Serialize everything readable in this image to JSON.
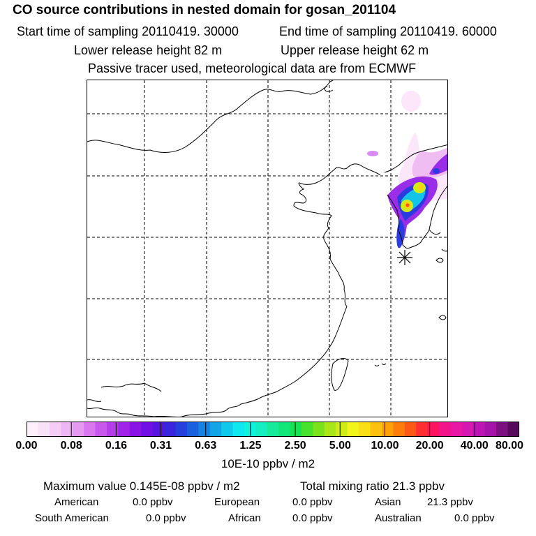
{
  "header": {
    "title": "CO  source contributions in nested domain for gosan_201104",
    "start_label": "Start time of sampling 20110419. 30000",
    "end_label": "End time of sampling 20110419. 60000",
    "lower_label": "Lower release height   82 m",
    "upper_label": "Upper release height   62 m",
    "tracer_note": "Passive tracer used, meteorological data are from ECMWF"
  },
  "colors": {
    "scale": [
      "#fdf0fb",
      "#f9e1f8",
      "#f5ccf5",
      "#eeb6f3",
      "#e59af1",
      "#d877ee",
      "#c857ec",
      "#b63cea",
      "#a024e8",
      "#8a14e6",
      "#7010e4",
      "#5516e0",
      "#3a26dd",
      "#2540dc",
      "#1a60de",
      "#1582e2",
      "#12a4e6",
      "#10c8ea",
      "#0ee8ee",
      "#10f2dc",
      "#14eec0",
      "#18ea9c",
      "#10e67a",
      "#18e254",
      "#46e22c",
      "#7ae21c",
      "#a8e618",
      "#d0ec18",
      "#f2f41a",
      "#fcde14",
      "#fcc00e",
      "#fca00c",
      "#fc7c0c",
      "#fc5816",
      "#fc3030",
      "#fc1460",
      "#f4148a",
      "#e618a4",
      "#d418b0",
      "#be16b4",
      "#a414a8",
      "#7c1080",
      "#560a5a"
    ],
    "plume": [
      "#fce6fa",
      "#f0bdf2",
      "#d98af0",
      "#9a2ee8",
      "#2a3ce0",
      "#12c4ea",
      "#18ea9c",
      "#d0ec18",
      "#fcd014",
      "#fc5010"
    ]
  },
  "colorbar": {
    "tick_labels": [
      "0.00",
      "0.08",
      "0.16",
      "0.31",
      "0.63",
      "1.25",
      "2.50",
      "5.00",
      "10.00",
      "20.00",
      "40.00",
      "80.00"
    ],
    "unit": "10E-10 ppbv / m2"
  },
  "stats": {
    "max_label": "Maximum value  0.145E-08 ppbv / m2",
    "total_label": "Total mixing ratio      21.3 ppbv"
  },
  "regions": [
    {
      "name": "American",
      "value": "0.0 ppbv"
    },
    {
      "name": "European",
      "value": "0.0 ppbv"
    },
    {
      "name": "Asian",
      "value": "21.3 ppbv"
    },
    {
      "name": "South American",
      "value": "0.0 ppbv"
    },
    {
      "name": "African",
      "value": "0.0 ppbv"
    },
    {
      "name": "Australian",
      "value": "0.0 ppbv"
    }
  ]
}
